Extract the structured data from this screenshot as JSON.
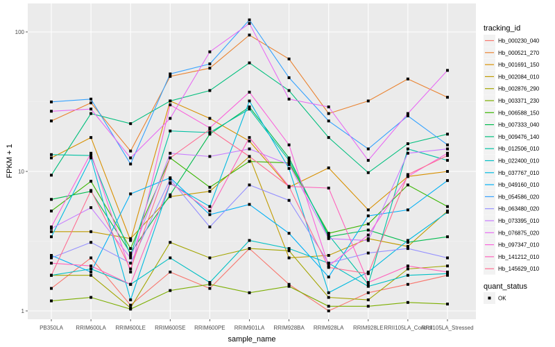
{
  "chart_data": {
    "type": "line",
    "title": "",
    "xlabel": "sample_name",
    "ylabel": "FPKM + 1",
    "yscale": "log10",
    "ylim": [
      0.85,
      150
    ],
    "yticks": [
      1,
      10,
      100
    ],
    "ytick_labels": [
      "1",
      "10",
      "100"
    ],
    "grid": true,
    "legend_placement": "right",
    "categories": [
      "PB350LA",
      "RRIM600LA",
      "RRIM600LE",
      "RRIM600SE",
      "RRIM600PE",
      "RRIM901LA",
      "RRIM928BA",
      "RRIM928LA",
      "RRIM928LE",
      "RRII105LA_Control",
      "RRII105LA_Stressed"
    ],
    "legend_color_title": "tracking_id",
    "legend_shape_title": "quant_status",
    "legend_shape_entries": [
      "OK"
    ],
    "series": [
      {
        "name": "Hb_000230_040",
        "color": "#F8766D",
        "values": [
          1.45,
          2.4,
          1.1,
          1.9,
          1.45,
          2.8,
          1.55,
          1.0,
          1.35,
          1.55,
          1.8
        ]
      },
      {
        "name": "Hb_000521_270",
        "color": "#EA8331",
        "values": [
          23,
          31,
          14,
          48,
          55,
          95,
          64,
          26,
          32,
          46,
          34
        ]
      },
      {
        "name": "Hb_001691_150",
        "color": "#D89000",
        "values": [
          12.5,
          17.5,
          3.2,
          32,
          24,
          16.5,
          7.7,
          10.6,
          5.3,
          9.2,
          10
        ]
      },
      {
        "name": "Hb_002084_010",
        "color": "#C09B00",
        "values": [
          3.7,
          3.7,
          3.3,
          6.6,
          7.2,
          12.8,
          2.4,
          2.5,
          3.3,
          2.9,
          5.2
        ]
      },
      {
        "name": "Hb_002876_290",
        "color": "#A3A500",
        "values": [
          1.8,
          1.8,
          1.05,
          3.1,
          2.4,
          2.8,
          2.7,
          1.25,
          1.2,
          2.0,
          2.1
        ]
      },
      {
        "name": "Hb_003371_230",
        "color": "#7CAE00",
        "values": [
          1.18,
          1.25,
          1.03,
          1.4,
          1.55,
          1.35,
          1.5,
          1.08,
          1.08,
          1.15,
          1.12
        ]
      },
      {
        "name": "Hb_006588_150",
        "color": "#39B600",
        "values": [
          5.2,
          8.5,
          2.8,
          12.5,
          7.7,
          11.8,
          11.5,
          3.6,
          4.2,
          8.0,
          5.6
        ]
      },
      {
        "name": "Hb_007333_040",
        "color": "#00BB4E",
        "values": [
          6.3,
          7.2,
          2.6,
          6.8,
          18.5,
          29,
          12.5,
          3.4,
          3.8,
          3.1,
          3.4
        ]
      },
      {
        "name": "Hb_009476_140",
        "color": "#00BF7D",
        "values": [
          9.4,
          26,
          22,
          32,
          38,
          60,
          38,
          17.5,
          9.8,
          15.8,
          18.5
        ]
      },
      {
        "name": "Hb_012506_010",
        "color": "#00C1A3",
        "values": [
          13.2,
          13,
          2.5,
          19.5,
          19,
          28,
          12,
          3.5,
          1.55,
          14.5,
          12
        ]
      },
      {
        "name": "Hb_022400_010",
        "color": "#00BFC4",
        "values": [
          1.8,
          2.0,
          1.55,
          2.4,
          1.6,
          3.2,
          2.8,
          2.2,
          1.5,
          1.8,
          1.85
        ]
      },
      {
        "name": "Hb_037767_010",
        "color": "#00BAE0",
        "values": [
          3.4,
          12.5,
          1.2,
          8.2,
          5.6,
          32,
          10.5,
          1.35,
          1.9,
          3.2,
          5.1
        ]
      },
      {
        "name": "Hb_049160_010",
        "color": "#00B0F6",
        "values": [
          2.5,
          1.9,
          6.9,
          9.0,
          4.9,
          5.8,
          3.6,
          1.75,
          4.8,
          5.3,
          8.6
        ]
      },
      {
        "name": "Hb_054586_020",
        "color": "#35A2FF",
        "values": [
          31.5,
          33,
          11.3,
          50,
          59,
          122,
          47,
          23,
          14.5,
          25,
          15.5
        ]
      },
      {
        "name": "Hb_063480_020",
        "color": "#9590FF",
        "values": [
          2.4,
          3.1,
          2.2,
          8.8,
          4.0,
          8.0,
          6.2,
          2.2,
          2.6,
          2.8,
          2.4
        ]
      },
      {
        "name": "Hb_073395_010",
        "color": "#C77CFF",
        "values": [
          3.9,
          5.5,
          2.4,
          13.5,
          12.8,
          14.5,
          11.2,
          3.3,
          3.2,
          13.5,
          14.5
        ]
      },
      {
        "name": "Hb_076875_020",
        "color": "#E76BF3",
        "values": [
          27,
          28,
          12.5,
          24,
          72,
          115,
          33,
          29,
          12.0,
          26,
          53
        ]
      },
      {
        "name": "Hb_097347_010",
        "color": "#FA62DB",
        "values": [
          4.0,
          13.5,
          1.9,
          30,
          20.5,
          37,
          15.5,
          2.1,
          3.5,
          9.2,
          13.5
        ]
      },
      {
        "name": "Hb_141212_010",
        "color": "#FF62BC",
        "values": [
          2.2,
          2.1,
          1.55,
          8.3,
          5.2,
          17.5,
          7.8,
          7.6,
          1.6,
          2.1,
          1.9
        ]
      },
      {
        "name": "Hb_145629_010",
        "color": "#FF6C91",
        "values": [
          1.8,
          7.3,
          2.0,
          12.5,
          20,
          12.8,
          7.8,
          2.05,
          1.85,
          9.5,
          13
        ]
      }
    ]
  }
}
